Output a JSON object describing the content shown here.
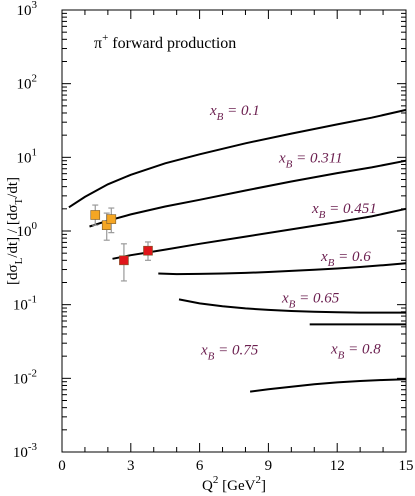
{
  "chart_data": {
    "type": "line",
    "annotation": {
      "main": "π",
      "sup": "+",
      "rest": " forward production"
    },
    "xlabel": {
      "main": "Q",
      "sup": "2",
      "rest": " [GeV",
      "sup2": "2",
      "close": "]"
    },
    "ylabel": {
      "a": "[dσ",
      "a_sub": "L",
      "b": "/dt] / [dσ",
      "b_sub": "T",
      "c": "/dt]"
    },
    "xlim": [
      0,
      15
    ],
    "ylim_log10": [
      -3,
      3
    ],
    "log_y": true,
    "grid": false,
    "x_ticks": [
      {
        "v": 0,
        "label": "0"
      },
      {
        "v": 3,
        "label": "3"
      },
      {
        "v": 6,
        "label": "6"
      },
      {
        "v": 9,
        "label": "9"
      },
      {
        "v": 12,
        "label": "12"
      },
      {
        "v": 15,
        "label": "15"
      }
    ],
    "y_ticks": [
      {
        "exp": -3,
        "base": "10",
        "label": "-3"
      },
      {
        "exp": -2,
        "base": "10",
        "label": "-2"
      },
      {
        "exp": -1,
        "base": "10",
        "label": "-1"
      },
      {
        "exp": 0,
        "base": "10",
        "label": "0"
      },
      {
        "exp": 1,
        "base": "10",
        "label": "1"
      },
      {
        "exp": 2,
        "base": "10",
        "label": "2"
      },
      {
        "exp": 3,
        "base": "10",
        "label": "3"
      }
    ],
    "label_color": "#6b1f4f",
    "curve_color": "#000000",
    "series": [
      {
        "xb": "0.1",
        "x": [
          0.3,
          1.0,
          2.0,
          3.0,
          4.5,
          6.0,
          8.0,
          10.0,
          12.0,
          13.5,
          15.0
        ],
        "y": [
          2.1,
          2.9,
          4.3,
          5.8,
          8.3,
          11.0,
          15.5,
          21.0,
          28.0,
          34.5,
          44.0
        ]
      },
      {
        "xb": "0.311",
        "x": [
          1.2,
          2.0,
          3.0,
          4.5,
          6.0,
          8.0,
          10.0,
          12.0,
          13.5,
          15.0
        ],
        "y": [
          1.15,
          1.38,
          1.68,
          2.15,
          2.65,
          3.55,
          4.7,
          6.1,
          7.3,
          9.0
        ]
      },
      {
        "xb": "0.451",
        "x": [
          2.2,
          3.0,
          4.5,
          6.0,
          8.0,
          10.0,
          12.0,
          13.5,
          15.0
        ],
        "y": [
          0.42,
          0.47,
          0.56,
          0.67,
          0.84,
          1.05,
          1.32,
          1.58,
          2.0
        ]
      },
      {
        "xb": "0.6",
        "x": [
          4.2,
          5.0,
          6.0,
          7.0,
          8.0,
          9.0,
          10.0,
          11.0,
          12.0,
          13.0,
          14.0,
          15.0
        ],
        "y": [
          0.265,
          0.26,
          0.262,
          0.265,
          0.27,
          0.278,
          0.287,
          0.298,
          0.31,
          0.325,
          0.343,
          0.365
        ]
      },
      {
        "xb": "0.65",
        "x": [
          5.1,
          6.0,
          7.0,
          8.0,
          9.0,
          10.0,
          11.0,
          12.0,
          13.0,
          14.0,
          15.0
        ],
        "y": [
          0.118,
          0.104,
          0.095,
          0.089,
          0.085,
          0.082,
          0.08,
          0.079,
          0.078,
          0.078,
          0.078
        ]
      },
      {
        "xb": "0.8",
        "x": [
          10.8,
          12.0,
          13.0,
          14.0,
          15.0
        ],
        "y": [
          0.054,
          0.054,
          0.054,
          0.054,
          0.054
        ]
      },
      {
        "xb": "0.75",
        "x": [
          8.2,
          9.0,
          10.0,
          11.0,
          12.0,
          13.0,
          14.0,
          15.0
        ],
        "y": [
          0.0066,
          0.0071,
          0.0077,
          0.0083,
          0.0088,
          0.0092,
          0.0095,
          0.0097
        ]
      }
    ],
    "points": [
      {
        "x": 1.45,
        "y": 1.65,
        "yerr_lo": 0.45,
        "yerr_hi": 0.6,
        "color": "#f5a623"
      },
      {
        "x": 1.95,
        "y": 1.2,
        "yerr_lo": 0.45,
        "yerr_hi": 0.55,
        "color": "#f5a623"
      },
      {
        "x": 2.15,
        "y": 1.45,
        "yerr_lo": 0.5,
        "yerr_hi": 0.6,
        "color": "#f5a623"
      },
      {
        "x": 2.7,
        "y": 0.4,
        "yerr_lo": 0.19,
        "yerr_hi": 0.27,
        "color": "#e0161b"
      },
      {
        "x": 3.75,
        "y": 0.54,
        "yerr_lo": 0.14,
        "yerr_hi": 0.17,
        "color": "#e0161b"
      }
    ]
  }
}
